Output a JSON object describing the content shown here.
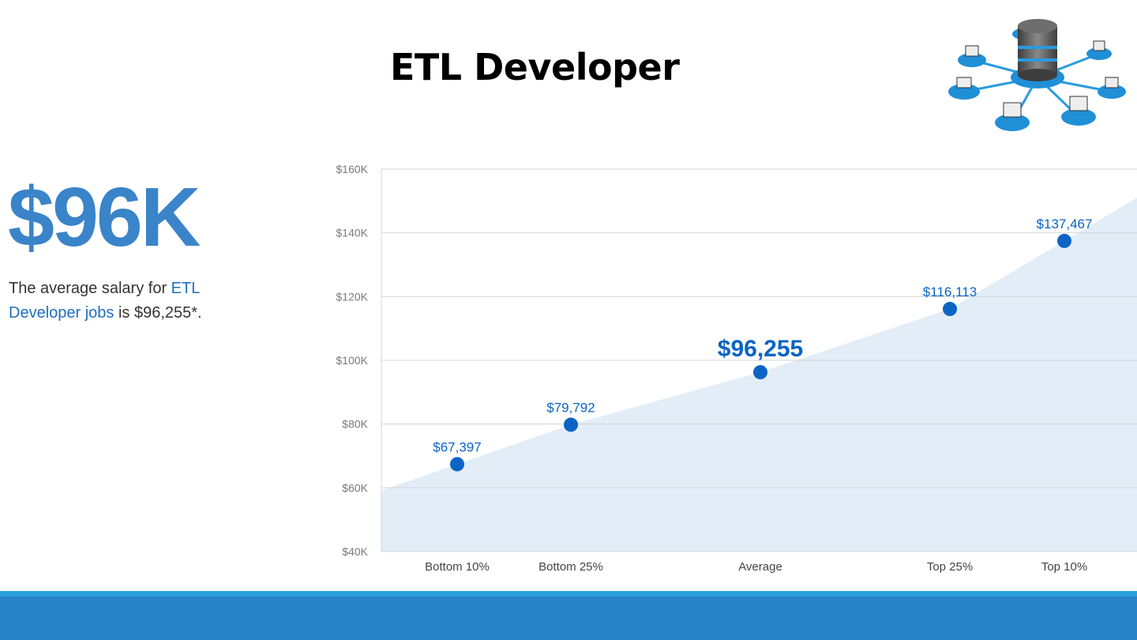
{
  "title": "ETL Developer",
  "summary": {
    "headline": "$96K",
    "text_before": "The average salary for ",
    "highlight": "ETL Developer jobs",
    "text_after": " is $96,255*."
  },
  "colors": {
    "accent": "#3a84c9",
    "link": "#1f6fc0",
    "point": "#0b64c4",
    "area": "#e2edf7",
    "grid": "#d4d4d4",
    "tick": "#7a7a7a",
    "footer": "#2783c6",
    "footer_stripe": "#2aa0db"
  },
  "chart_data": {
    "type": "area",
    "y_ticks": [
      "$40K",
      "$60K",
      "$80K",
      "$100K",
      "$120K",
      "$140K",
      "$160K"
    ],
    "ylim": [
      40000,
      160000
    ],
    "grid": true,
    "categories": [
      "Bottom 10%",
      "Bottom 25%",
      "Average",
      "Top 25%",
      "Top 10%"
    ],
    "values": [
      67397,
      79792,
      96255,
      116113,
      137467
    ],
    "labels": [
      "$67,397",
      "$79,792",
      "$96,255",
      "$116,113",
      "$137,467"
    ],
    "highlight_index": 2
  }
}
